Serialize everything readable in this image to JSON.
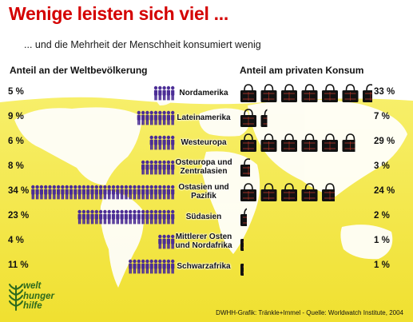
{
  "title": "Wenige leisten sich viel ...",
  "subtitle": "... und die Mehrheit der Menschheit konsumiert wenig",
  "source": "DWHH-Grafik: Tränkle+Immel - Quelle: Worldwatch Institute, 2004",
  "logo": {
    "lines": [
      "welt",
      "hunger",
      "hilfe"
    ]
  },
  "colors": {
    "title": "#d40000",
    "people": "#4b2d96",
    "bags": "#111111",
    "bag_accent": "#c0392b",
    "yellow": "#f4ea56",
    "map": "#ffffff"
  },
  "icons": {
    "population": "person-icon",
    "consumption": "shopping-bag-icon"
  },
  "chart_data": {
    "type": "bar",
    "left_header": "Anteil an der Weltbevölkerung",
    "right_header": "Anteil am privaten Konsum",
    "categories": [
      {
        "label": [
          "Nordamerika"
        ]
      },
      {
        "label": [
          "Lateinamerika"
        ]
      },
      {
        "label": [
          "Westeuropa"
        ]
      },
      {
        "label": [
          "Osteuropa und",
          "Zentralasien"
        ]
      },
      {
        "label": [
          "Ostasien und",
          "Pazifik"
        ]
      },
      {
        "label": [
          "Südasien"
        ]
      },
      {
        "label": [
          "Mittlerer Osten",
          "und Nordafrika"
        ]
      },
      {
        "label": [
          "Schwarzafrika"
        ]
      }
    ],
    "series": [
      {
        "name": "Anteil an der Weltbevölkerung",
        "unit": "%",
        "values": [
          5,
          9,
          6,
          8,
          34,
          23,
          4,
          11
        ],
        "value_labels": [
          "5 %",
          "9 %",
          "6 %",
          "8 %",
          "34 %",
          "23 %",
          "4 %",
          "11 %"
        ]
      },
      {
        "name": "Anteil am privaten Konsum",
        "unit": "%",
        "values": [
          33,
          7,
          29,
          3,
          24,
          2,
          1,
          1
        ],
        "value_labels": [
          "33 %",
          "7 %",
          "29 %",
          "3 %",
          "24 %",
          "2 %",
          "1 %",
          "1 %"
        ]
      }
    ]
  }
}
